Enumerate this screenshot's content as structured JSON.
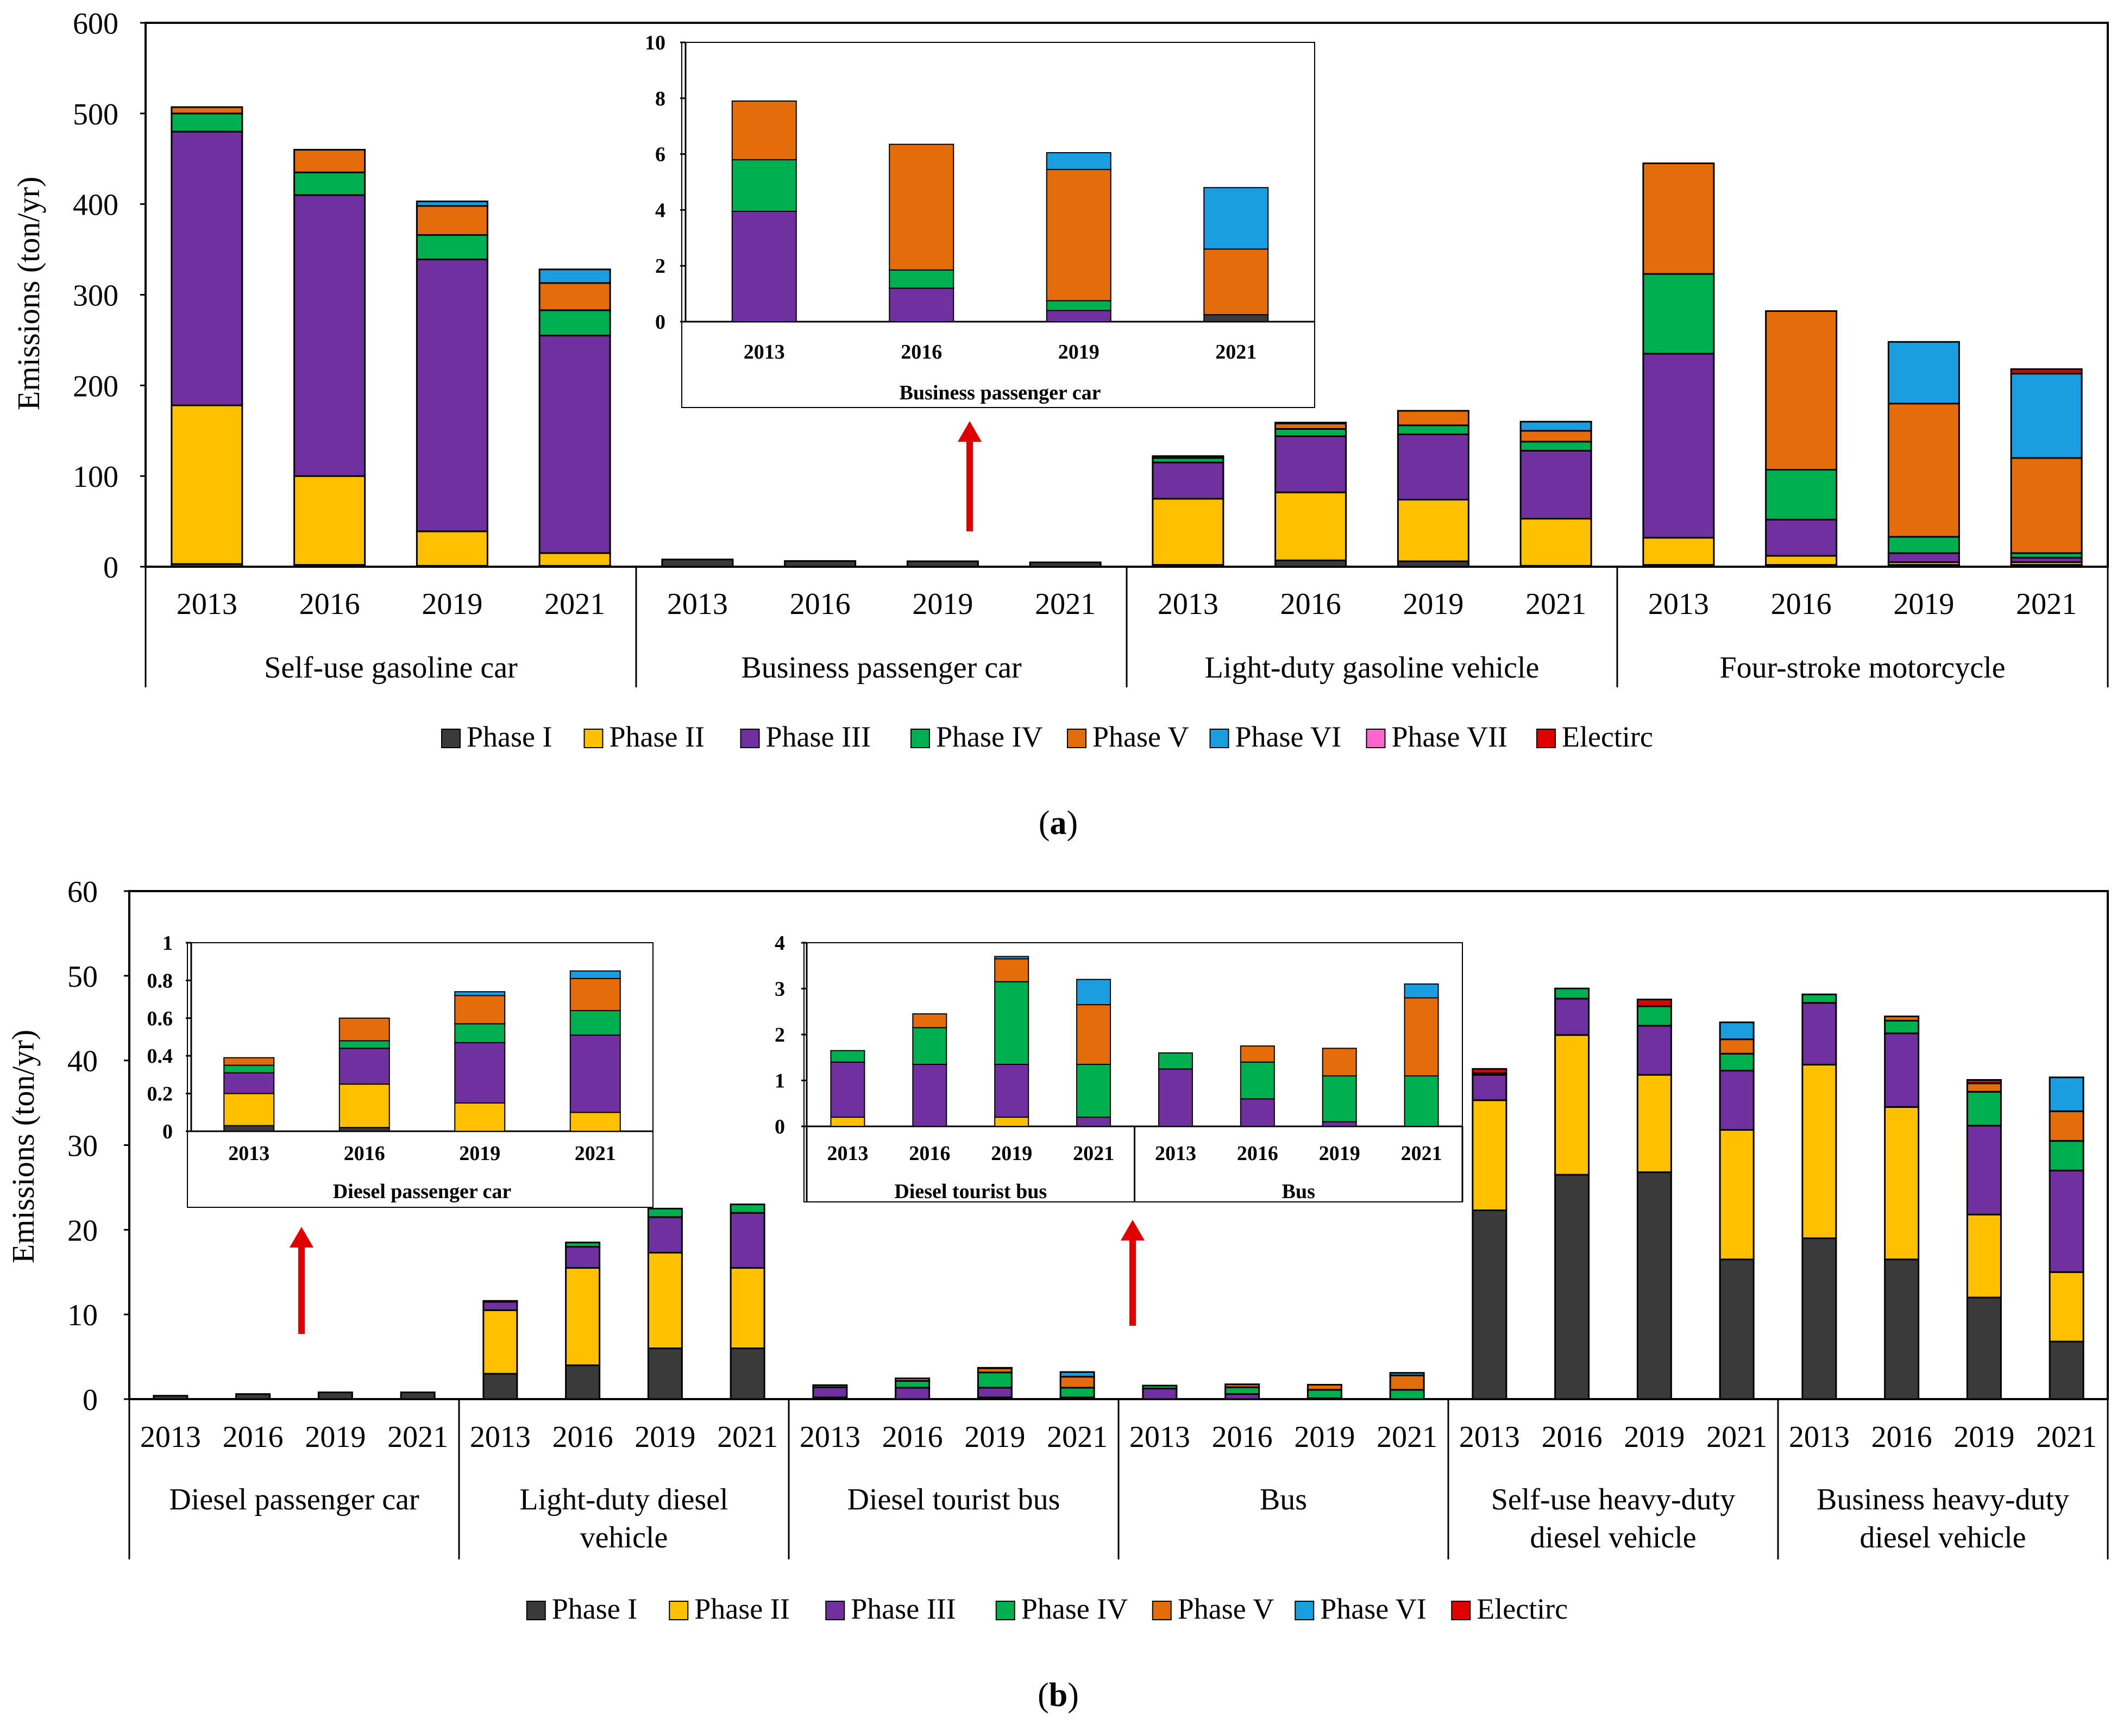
{
  "colors": {
    "Phase I": "#3a3a3a",
    "Phase II": "#ffc000",
    "Phase III": "#7030a0",
    "Phase IV": "#00b050",
    "Phase V": "#e46c0a",
    "Phase VI": "#1a9ee0",
    "Phase VII": "#ff66cc",
    "Electirc": "#e00000"
  },
  "panel_labels": {
    "a": "a",
    "b": "b"
  },
  "chart_data": [
    {
      "id": "a-main",
      "type": "bar",
      "stacked": true,
      "ylabel": "Emissions (ton/yr)",
      "ylim": [
        0,
        600
      ],
      "yticks": [
        "0",
        "100",
        "200",
        "300",
        "400",
        "500",
        "600"
      ],
      "years": [
        "2013",
        "2016",
        "2019",
        "2021"
      ],
      "groups": [
        {
          "label": "Self-use gasoline car",
          "bars": [
            {
              "Phase I": 3,
              "Phase II": 175,
              "Phase III": 302,
              "Phase IV": 20,
              "Phase V": 7
            },
            {
              "Phase I": 2,
              "Phase II": 98,
              "Phase III": 310,
              "Phase IV": 25,
              "Phase V": 25
            },
            {
              "Phase I": 1,
              "Phase II": 38,
              "Phase III": 300,
              "Phase IV": 27,
              "Phase V": 32,
              "Phase VI": 5
            },
            {
              "Phase I": 1,
              "Phase II": 14,
              "Phase III": 240,
              "Phase IV": 28,
              "Phase V": 30,
              "Phase VI": 15
            }
          ]
        },
        {
          "label": "Business passenger car",
          "bars": [
            {
              "Phase I": 8
            },
            {
              "Phase I": 6.3
            },
            {
              "Phase I": 6
            },
            {
              "Phase I": 4.8
            }
          ]
        },
        {
          "label": "Light-duty gasoline vehicle",
          "bars": [
            {
              "Phase I": 2,
              "Phase II": 73,
              "Phase III": 40,
              "Phase IV": 5,
              "Phase V": 0,
              "Phase VI": 0,
              "Electirc": 2
            },
            {
              "Phase I": 7,
              "Phase II": 75,
              "Phase III": 62,
              "Phase IV": 8,
              "Phase V": 6,
              "Electirc": 1
            },
            {
              "Phase I": 6,
              "Phase II": 68,
              "Phase III": 72,
              "Phase IV": 10,
              "Phase V": 16
            },
            {
              "Phase I": 1,
              "Phase II": 52,
              "Phase III": 75,
              "Phase IV": 10,
              "Phase V": 12,
              "Phase VI": 10
            }
          ]
        },
        {
          "label": "Four-stroke motorcycle",
          "bars": [
            {
              "Phase I": 2,
              "Phase II": 30,
              "Phase III": 203,
              "Phase IV": 88,
              "Phase V": 122
            },
            {
              "Phase I": 2,
              "Phase II": 10,
              "Phase III": 40,
              "Phase IV": 55,
              "Phase V": 175
            },
            {
              "Phase I": 2,
              "Phase II": 3,
              "Phase III": 10,
              "Phase IV": 18,
              "Phase V": 147,
              "Phase VI": 68
            },
            {
              "Phase I": 2,
              "Phase II": 3,
              "Phase III": 5,
              "Phase IV": 5,
              "Phase V": 105,
              "Phase VI": 93,
              "Electirc": 5
            }
          ]
        }
      ],
      "legend": [
        "Phase I",
        "Phase II",
        "Phase III",
        "Phase IV",
        "Phase V",
        "Phase VI",
        "Phase VII",
        "Electirc"
      ]
    },
    {
      "id": "a-inset",
      "type": "bar",
      "stacked": true,
      "ylim": [
        0,
        10
      ],
      "yticks": [
        "0",
        "2",
        "4",
        "6",
        "8",
        "10"
      ],
      "title": "Business passenger car",
      "groups": [
        {
          "label": "Business passenger car",
          "bars": [
            {
              "Phase III": 3.95,
              "Phase IV": 1.85,
              "Phase V": 2.1
            },
            {
              "Phase III": 1.2,
              "Phase IV": 0.65,
              "Phase V": 4.5
            },
            {
              "Phase III": 0.4,
              "Phase IV": 0.35,
              "Phase V": 4.7,
              "Phase VI": 0.6
            },
            {
              "Phase I": 0.25,
              "Phase V": 2.35,
              "Phase VI": 2.2
            }
          ]
        }
      ],
      "years": [
        "2013",
        "2016",
        "2019",
        "2021"
      ]
    },
    {
      "id": "b-main",
      "type": "bar",
      "stacked": true,
      "ylabel": "Emissions (ton/yr)",
      "ylim": [
        0,
        60
      ],
      "yticks": [
        "0",
        "10",
        "20",
        "30",
        "40",
        "50",
        "60"
      ],
      "years": [
        "2013",
        "2016",
        "2019",
        "2021"
      ],
      "groups": [
        {
          "label": "Diesel passenger car",
          "bars": [
            {
              "Phase I": 0.4
            },
            {
              "Phase I": 0.6
            },
            {
              "Phase I": 0.8
            },
            {
              "Phase I": 0.8
            }
          ]
        },
        {
          "label": "Light-duty diesel vehicle",
          "bars": [
            {
              "Phase I": 3,
              "Phase II": 7.5,
              "Phase III": 1,
              "Phase IV": 0.1
            },
            {
              "Phase I": 4,
              "Phase II": 11.5,
              "Phase III": 2.5,
              "Phase IV": 0.5
            },
            {
              "Phase I": 6,
              "Phase II": 11.3,
              "Phase III": 4.2,
              "Phase IV": 1
            },
            {
              "Phase I": 6,
              "Phase II": 9.5,
              "Phase III": 6.5,
              "Phase IV": 1
            }
          ]
        },
        {
          "label": "Diesel tourist bus",
          "bars": [
            {
              "Phase II": 0.2,
              "Phase III": 1.2,
              "Phase IV": 0.25
            },
            {
              "Phase III": 1.35,
              "Phase IV": 0.8,
              "Phase V": 0.3
            },
            {
              "Phase II": 0.2,
              "Phase III": 1.15,
              "Phase IV": 1.8,
              "Phase V": 0.5,
              "Phase VI": 0.05
            },
            {
              "Phase III": 0.2,
              "Phase IV": 1.15,
              "Phase V": 1.3,
              "Phase VI": 0.55
            }
          ]
        },
        {
          "label": "Bus",
          "bars": [
            {
              "Phase III": 1.25,
              "Phase IV": 0.35
            },
            {
              "Phase III": 0.6,
              "Phase IV": 0.8,
              "Phase V": 0.35
            },
            {
              "Phase III": 0.1,
              "Phase IV": 1.0,
              "Phase V": 0.6
            },
            {
              "Phase IV": 1.1,
              "Phase V": 1.7,
              "Phase VI": 0.3
            }
          ]
        },
        {
          "label": "Self-use heavy-duty diesel vehicle",
          "bars": [
            {
              "Phase I": 22.3,
              "Phase II": 13,
              "Phase III": 3,
              "Phase IV": 0.2,
              "Electirc": 0.5
            },
            {
              "Phase I": 26.5,
              "Phase II": 16.5,
              "Phase III": 4.3,
              "Phase IV": 1.2
            },
            {
              "Phase I": 26.8,
              "Phase II": 11.5,
              "Phase III": 5.8,
              "Phase IV": 2.3,
              "Electirc": 0.8
            },
            {
              "Phase I": 16.5,
              "Phase II": 15.3,
              "Phase III": 7,
              "Phase IV": 2,
              "Phase V": 1.7,
              "Phase VI": 2
            }
          ]
        },
        {
          "label": "Business heavy-duty diesel vehicle",
          "bars": [
            {
              "Phase I": 19,
              "Phase II": 20.5,
              "Phase III": 7.3,
              "Phase IV": 1
            },
            {
              "Phase I": 16.5,
              "Phase II": 18,
              "Phase III": 8.7,
              "Phase IV": 1.5,
              "Phase V": 0.5
            },
            {
              "Phase I": 12,
              "Phase II": 9.8,
              "Phase III": 10.5,
              "Phase IV": 4,
              "Phase V": 1,
              "Electirc": 0.4
            },
            {
              "Phase I": 6.8,
              "Phase II": 8.2,
              "Phase III": 12,
              "Phase IV": 3.5,
              "Phase V": 3.5,
              "Phase VI": 4
            }
          ]
        }
      ],
      "legend": [
        "Phase I",
        "Phase II",
        "Phase III",
        "Phase IV",
        "Phase V",
        "Phase VI",
        "Electirc"
      ]
    },
    {
      "id": "b-inset1",
      "type": "bar",
      "stacked": true,
      "ylim": [
        0,
        1
      ],
      "yticks": [
        "0",
        "0.2",
        "0.4",
        "0.6",
        "0.8",
        "1"
      ],
      "years": [
        "2013",
        "2016",
        "2019",
        "2021"
      ],
      "groups": [
        {
          "label": "Diesel passenger car",
          "bars": [
            {
              "Phase I": 0.03,
              "Phase II": 0.17,
              "Phase III": 0.11,
              "Phase IV": 0.04,
              "Phase V": 0.04
            },
            {
              "Phase I": 0.02,
              "Phase II": 0.23,
              "Phase III": 0.19,
              "Phase IV": 0.04,
              "Phase V": 0.12
            },
            {
              "Phase II": 0.15,
              "Phase III": 0.32,
              "Phase IV": 0.1,
              "Phase V": 0.15,
              "Phase VI": 0.02
            },
            {
              "Phase II": 0.1,
              "Phase III": 0.41,
              "Phase IV": 0.13,
              "Phase V": 0.17,
              "Phase VI": 0.04
            }
          ]
        }
      ]
    },
    {
      "id": "b-inset2",
      "type": "bar",
      "stacked": true,
      "ylim": [
        0,
        4
      ],
      "yticks": [
        "0",
        "1",
        "2",
        "3",
        "4"
      ],
      "years": [
        "2013",
        "2016",
        "2019",
        "2021"
      ],
      "groups": [
        {
          "label": "Diesel tourist bus",
          "bars": [
            {
              "Phase II": 0.2,
              "Phase III": 1.2,
              "Phase IV": 0.25
            },
            {
              "Phase III": 1.35,
              "Phase IV": 0.8,
              "Phase V": 0.3
            },
            {
              "Phase II": 0.2,
              "Phase III": 1.15,
              "Phase IV": 1.8,
              "Phase V": 0.5,
              "Phase VI": 0.05
            },
            {
              "Phase III": 0.2,
              "Phase IV": 1.15,
              "Phase V": 1.3,
              "Phase VI": 0.55
            }
          ]
        },
        {
          "label": "Bus",
          "bars": [
            {
              "Phase III": 1.25,
              "Phase IV": 0.35
            },
            {
              "Phase III": 0.6,
              "Phase IV": 0.8,
              "Phase V": 0.35
            },
            {
              "Phase III": 0.1,
              "Phase IV": 1.0,
              "Phase V": 0.6
            },
            {
              "Phase IV": 1.1,
              "Phase V": 1.7,
              "Phase VI": 0.3
            }
          ]
        }
      ]
    }
  ]
}
